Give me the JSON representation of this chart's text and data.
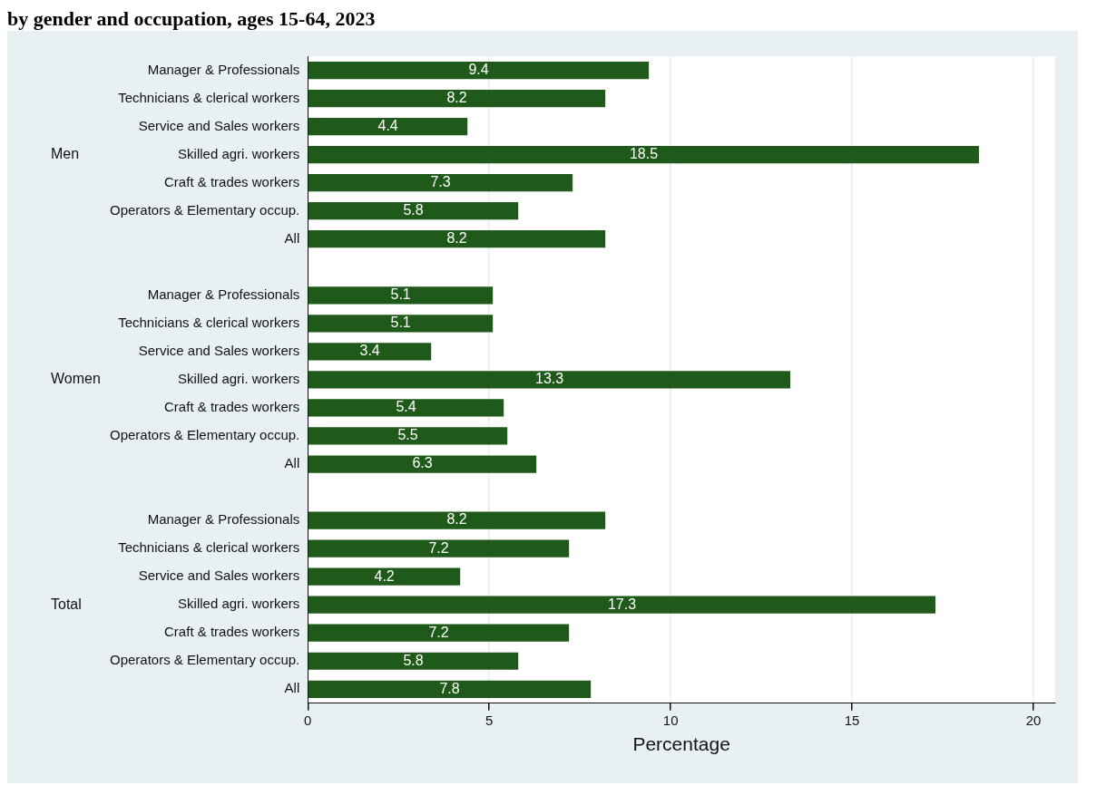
{
  "chart_data": {
    "type": "bar",
    "orientation": "horizontal",
    "title": "by gender and occupation, ages 15-64, 2023",
    "xlabel": "Percentage",
    "categories": [
      "Manager & Professionals",
      "Technicians & clerical workers",
      "Service and Sales workers",
      "Skilled agri. workers",
      "Craft & trades workers",
      "Operators & Elementary occup.",
      "All",
      null,
      "Manager & Professionals",
      "Technicians & clerical workers",
      "Service and Sales workers",
      "Skilled agri. workers",
      "Craft & trades workers",
      "Operators & Elementary occup.",
      "All",
      null,
      "Manager & Professionals",
      "Technicians & clerical workers",
      "Service and Sales workers",
      "Skilled agri. workers",
      "Craft & trades workers",
      "Operators & Elementary occup.",
      "All"
    ],
    "values": [
      9.4,
      8.2,
      4.4,
      18.5,
      7.3,
      5.8,
      8.2,
      null,
      5.1,
      5.1,
      3.4,
      13.3,
      5.4,
      5.5,
      6.3,
      null,
      8.2,
      7.2,
      4.2,
      17.3,
      7.2,
      5.8,
      7.8
    ],
    "color": "#1f5a1a",
    "xlim": [
      0,
      20.6
    ],
    "xticks": [
      0,
      5,
      10,
      15,
      20
    ],
    "grid": "x",
    "data_labels": true,
    "legend": false,
    "annotations": [
      "Men",
      "Women",
      "Total"
    ]
  }
}
